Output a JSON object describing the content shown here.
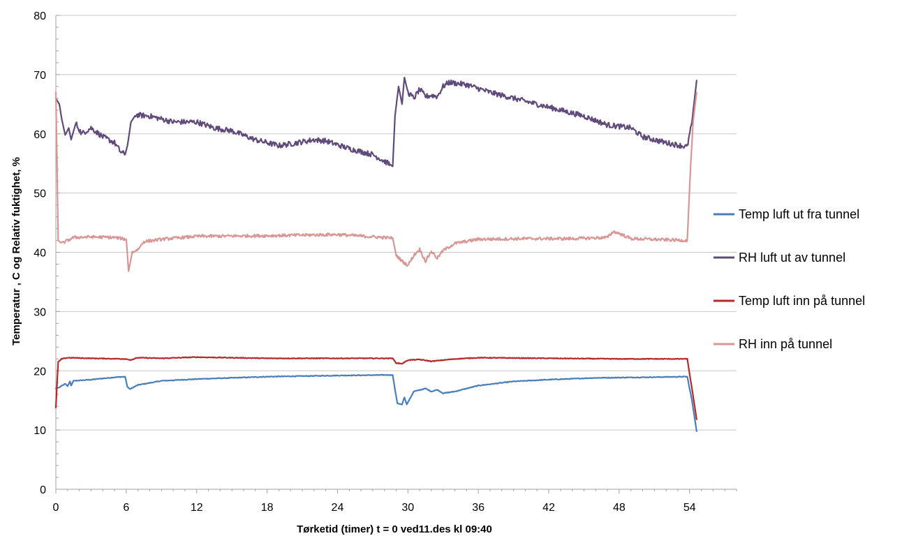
{
  "chart_data": {
    "type": "line",
    "title": "",
    "xlabel": "Tørketid (timer)   t = 0  ved11.des kl 09:40",
    "ylabel": "Temperatur , C  og  Relativ fuktighet, %",
    "xlim": [
      0,
      58
    ],
    "ylim": [
      0,
      80
    ],
    "xticks": [
      0,
      6,
      12,
      18,
      24,
      30,
      36,
      42,
      48,
      54
    ],
    "yticks": [
      0,
      10,
      20,
      30,
      40,
      50,
      60,
      70,
      80
    ],
    "grid": "horizontal",
    "legend_position": "right",
    "series": [
      {
        "name": "Temp luft ut fra tunnel",
        "color": "#4a7ebb",
        "points": [
          [
            0,
            17
          ],
          [
            0.3,
            17.2
          ],
          [
            0.8,
            17.8
          ],
          [
            1.0,
            17.4
          ],
          [
            1.2,
            18.2
          ],
          [
            1.3,
            17.5
          ],
          [
            1.5,
            18.3
          ],
          [
            3,
            18.5
          ],
          [
            5,
            18.9
          ],
          [
            5.9,
            19
          ],
          [
            6.1,
            17.3
          ],
          [
            6.3,
            16.9
          ],
          [
            7,
            17.6
          ],
          [
            9,
            18.3
          ],
          [
            12,
            18.6
          ],
          [
            18,
            19
          ],
          [
            24,
            19.2
          ],
          [
            28.7,
            19.3
          ],
          [
            28.9,
            16.8
          ],
          [
            29.1,
            14.5
          ],
          [
            29.5,
            14.3
          ],
          [
            29.7,
            15.5
          ],
          [
            29.9,
            14.3
          ],
          [
            30.5,
            16.5
          ],
          [
            31.5,
            17
          ],
          [
            32,
            16.5
          ],
          [
            32.5,
            16.8
          ],
          [
            33,
            16.2
          ],
          [
            34,
            16.5
          ],
          [
            36,
            17.5
          ],
          [
            39,
            18.2
          ],
          [
            42,
            18.5
          ],
          [
            46,
            18.8
          ],
          [
            50,
            18.9
          ],
          [
            53.8,
            19
          ],
          [
            54.2,
            15
          ],
          [
            54.6,
            9.8
          ]
        ]
      },
      {
        "name": "RH luft ut av tunnel",
        "color": "#604a7b",
        "points": [
          [
            0,
            66
          ],
          [
            0.3,
            65
          ],
          [
            0.5,
            62.5
          ],
          [
            0.8,
            59.8
          ],
          [
            1.1,
            61
          ],
          [
            1.3,
            59
          ],
          [
            1.7,
            61.8
          ],
          [
            2.2,
            60
          ],
          [
            3,
            61
          ],
          [
            4,
            59.5
          ],
          [
            5,
            58.5
          ],
          [
            5.5,
            57
          ],
          [
            5.9,
            56.5
          ],
          [
            6.1,
            58
          ],
          [
            6.4,
            62
          ],
          [
            6.8,
            63.2
          ],
          [
            8,
            63
          ],
          [
            10,
            62
          ],
          [
            12,
            62
          ],
          [
            13.5,
            61
          ],
          [
            15,
            60.5
          ],
          [
            17,
            59
          ],
          [
            19,
            58
          ],
          [
            20,
            58.3
          ],
          [
            22,
            59
          ],
          [
            23,
            58.8
          ],
          [
            25,
            57.5
          ],
          [
            27,
            56.5
          ],
          [
            28.5,
            54.8
          ],
          [
            28.7,
            54.5
          ],
          [
            28.9,
            63
          ],
          [
            29.2,
            68
          ],
          [
            29.5,
            65
          ],
          [
            29.7,
            69.5
          ],
          [
            30,
            67
          ],
          [
            30.5,
            66
          ],
          [
            31,
            67.5
          ],
          [
            31.5,
            66.3
          ],
          [
            32,
            66.5
          ],
          [
            32.5,
            66.3
          ],
          [
            33,
            68
          ],
          [
            33.5,
            68.7
          ],
          [
            35,
            68.3
          ],
          [
            37,
            67
          ],
          [
            39,
            66
          ],
          [
            41,
            65
          ],
          [
            43,
            64
          ],
          [
            45,
            63
          ],
          [
            47,
            61.5
          ],
          [
            49,
            61
          ],
          [
            50,
            59.5
          ],
          [
            52,
            58.5
          ],
          [
            53.8,
            57.8
          ],
          [
            54.2,
            62
          ],
          [
            54.6,
            69
          ]
        ]
      },
      {
        "name": "Temp luft inn på tunnel",
        "color": "#b22a2a",
        "points": [
          [
            0,
            13.8
          ],
          [
            0.2,
            21.5
          ],
          [
            0.5,
            22
          ],
          [
            1,
            22.2
          ],
          [
            3,
            22.1
          ],
          [
            6,
            22
          ],
          [
            6.3,
            21.8
          ],
          [
            7,
            22.2
          ],
          [
            9,
            22.1
          ],
          [
            12,
            22.3
          ],
          [
            18,
            22.1
          ],
          [
            24,
            22.1
          ],
          [
            28.7,
            22.1
          ],
          [
            29,
            21.3
          ],
          [
            29.5,
            21.2
          ],
          [
            30,
            21.8
          ],
          [
            31,
            21.9
          ],
          [
            32,
            21.6
          ],
          [
            34,
            22
          ],
          [
            36,
            22.2
          ],
          [
            42,
            22.1
          ],
          [
            48,
            22
          ],
          [
            53.8,
            22
          ],
          [
            54.2,
            17
          ],
          [
            54.6,
            11.8
          ]
        ]
      },
      {
        "name": "RH inn på tunnel",
        "color": "#d99694",
        "points": [
          [
            0,
            67
          ],
          [
            0.1,
            55
          ],
          [
            0.2,
            42
          ],
          [
            0.5,
            41.5
          ],
          [
            1,
            42
          ],
          [
            1.5,
            42.5
          ],
          [
            3,
            42.6
          ],
          [
            5,
            42.5
          ],
          [
            6,
            42.2
          ],
          [
            6.2,
            36.8
          ],
          [
            6.5,
            40
          ],
          [
            7,
            40.5
          ],
          [
            7.5,
            41.8
          ],
          [
            9,
            42.2
          ],
          [
            12,
            42.7
          ],
          [
            18,
            42.8
          ],
          [
            24,
            43
          ],
          [
            28.7,
            42.4
          ],
          [
            29,
            39.5
          ],
          [
            29.5,
            38.5
          ],
          [
            30,
            37.8
          ],
          [
            30.5,
            39.5
          ],
          [
            31,
            40.5
          ],
          [
            31.5,
            38.5
          ],
          [
            32,
            40.2
          ],
          [
            32.5,
            39
          ],
          [
            33,
            40.3
          ],
          [
            34,
            41.5
          ],
          [
            36,
            42.2
          ],
          [
            40,
            42.3
          ],
          [
            44,
            42.3
          ],
          [
            47,
            42.5
          ],
          [
            47.5,
            43.5
          ],
          [
            48,
            43.2
          ],
          [
            49,
            42.3
          ],
          [
            53.8,
            42
          ],
          [
            54.1,
            55
          ],
          [
            54.3,
            62
          ],
          [
            54.6,
            67
          ]
        ]
      }
    ]
  }
}
